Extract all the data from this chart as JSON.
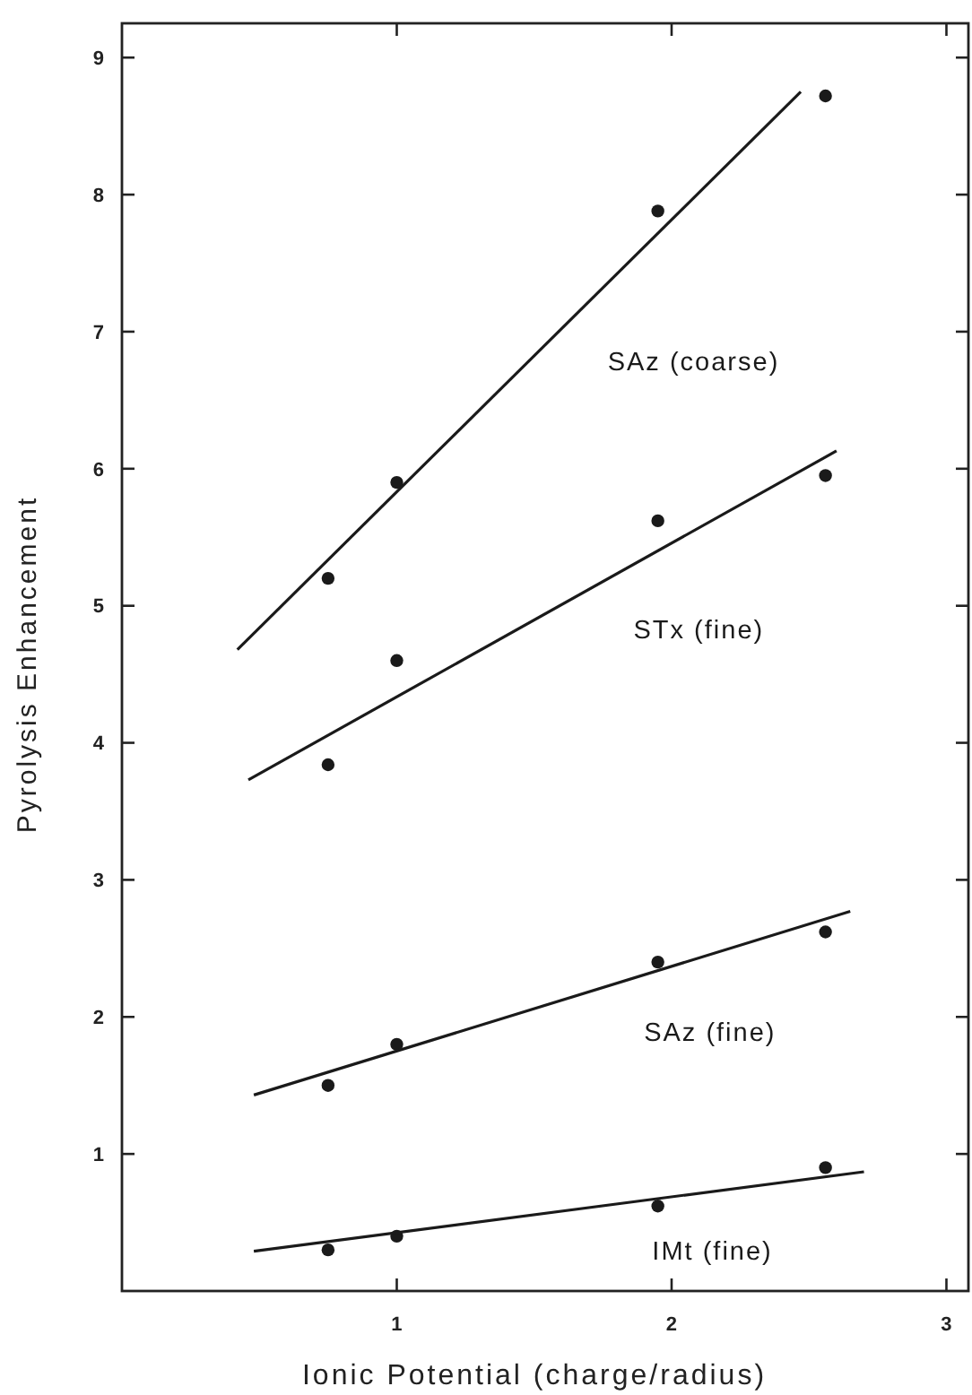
{
  "chart_data": {
    "type": "scatter",
    "xlabel": "Ionic Potential  (charge/radius)",
    "ylabel": "Pyrolysis Enhancement",
    "xlim": [
      0,
      3.08
    ],
    "ylim": [
      0,
      9.25
    ],
    "xticks": [
      1,
      2,
      3
    ],
    "yticks": [
      1,
      2,
      3,
      4,
      5,
      6,
      7,
      8,
      9
    ],
    "grid": false,
    "marker": "circle",
    "series": [
      {
        "color": "#1a1a1a",
        "x": [
          0.75,
          1.0,
          1.95,
          2.56
        ],
        "values": [
          5.2,
          5.9,
          7.88,
          8.72
        ]
      },
      {
        "color": "#1a1a1a",
        "x": [
          0.75,
          1.0,
          1.95,
          2.56
        ],
        "values": [
          3.84,
          4.6,
          5.62,
          5.95
        ]
      },
      {
        "color": "#1a1a1a",
        "x": [
          0.75,
          1.0,
          1.95,
          2.56
        ],
        "values": [
          1.5,
          1.8,
          2.4,
          2.62
        ]
      },
      {
        "color": "#1a1a1a",
        "x": [
          0.75,
          1.0,
          1.95,
          2.56
        ],
        "values": [
          0.3,
          0.4,
          0.62,
          0.9
        ]
      },
      {
        "type": "line",
        "name": "SAz (coarse)",
        "marker": "none",
        "color": "#1a1a1a",
        "x": [
          0.42,
          2.47
        ],
        "values": [
          4.68,
          8.75
        ]
      },
      {
        "type": "line",
        "name": "STx (fine)",
        "marker": "none",
        "color": "#1a1a1a",
        "x": [
          0.46,
          2.6
        ],
        "values": [
          3.73,
          6.13
        ]
      },
      {
        "type": "line",
        "name": "SAz (fine)",
        "marker": "none",
        "color": "#1a1a1a",
        "x": [
          0.48,
          2.65
        ],
        "values": [
          1.43,
          2.77
        ]
      },
      {
        "type": "line",
        "name": "IMt (fine)",
        "marker": "none",
        "color": "#1a1a1a",
        "x": [
          0.48,
          2.7
        ],
        "values": [
          0.29,
          0.87
        ]
      }
    ]
  }
}
